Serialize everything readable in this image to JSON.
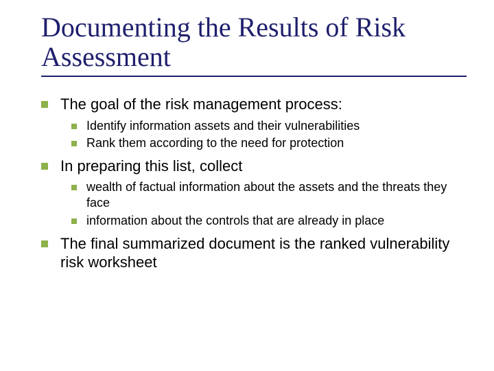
{
  "title": "Documenting the Results of Risk Assessment",
  "colors": {
    "title_color": "#1f1f6e",
    "rule_color": "#1f1f6e",
    "bullet_color": "#8db14b",
    "text_color": "#000000",
    "background": "#ffffff"
  },
  "typography": {
    "title_font": "Times New Roman",
    "title_fontsize_pt": 30,
    "body_font": "Verdana",
    "lvl1_fontsize_pt": 17,
    "lvl2_fontsize_pt": 14
  },
  "bullets": [
    {
      "text": "The goal of the risk management process:",
      "children": [
        {
          "text": "Identify information assets and their vulnerabilities"
        },
        {
          "text": "Rank them according to the need for protection"
        }
      ]
    },
    {
      "text": "In preparing this list, collect",
      "children": [
        {
          "text": "wealth of factual information about the assets and the threats they face"
        },
        {
          "text": "information about the controls that are already in place"
        }
      ]
    },
    {
      "text": "The final summarized document is the ranked vulnerability risk worksheet",
      "children": []
    }
  ]
}
